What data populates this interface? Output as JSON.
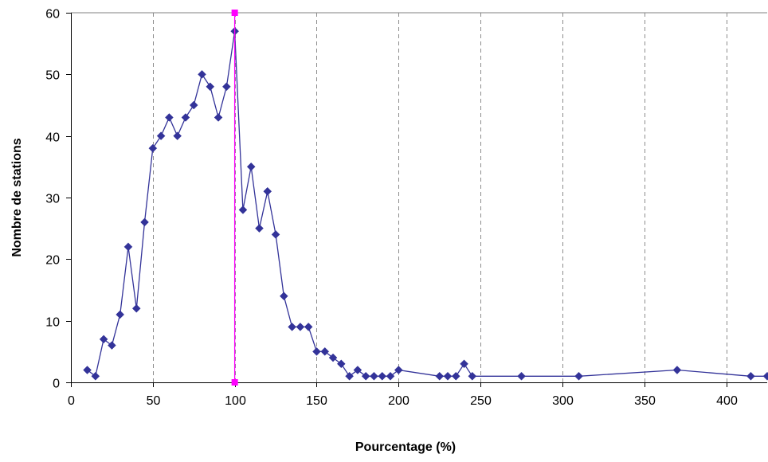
{
  "chart_data": {
    "type": "scatter",
    "xlabel": "Pourcentage (%)",
    "ylabel": "Nombre de stations",
    "xlim": [
      0,
      425
    ],
    "ylim": [
      0,
      60
    ],
    "xticks": [
      0,
      50,
      100,
      150,
      200,
      250,
      300,
      350,
      400
    ],
    "yticks": [
      0,
      10,
      20,
      30,
      40,
      50,
      60
    ],
    "grid": "vertical dashed",
    "legend": "none",
    "series": [
      {
        "color": "#333399",
        "marker": "diamond",
        "x": [
          10,
          15,
          20,
          25,
          30,
          35,
          40,
          45,
          50,
          55,
          60,
          65,
          70,
          75,
          80,
          85,
          90,
          95,
          100,
          105,
          110,
          115,
          120,
          125,
          130,
          135,
          140,
          145,
          150,
          155,
          160,
          165,
          170,
          175,
          180,
          185,
          190,
          195,
          200,
          225,
          230,
          235,
          240,
          245,
          275,
          310,
          370,
          415,
          425
        ],
        "y": [
          2,
          1,
          7,
          6,
          11,
          22,
          12,
          26,
          38,
          40,
          43,
          40,
          43,
          45,
          50,
          48,
          43,
          48,
          57,
          28,
          35,
          25,
          31,
          24,
          14,
          9,
          9,
          9,
          5,
          5,
          4,
          3,
          1,
          2,
          1,
          1,
          1,
          1,
          2,
          1,
          1,
          1,
          3,
          1,
          1,
          1,
          2,
          1,
          1
        ]
      },
      {
        "color": "#ff00ff",
        "marker": "square",
        "x": [
          100,
          100
        ],
        "y": [
          0,
          60
        ]
      }
    ]
  }
}
